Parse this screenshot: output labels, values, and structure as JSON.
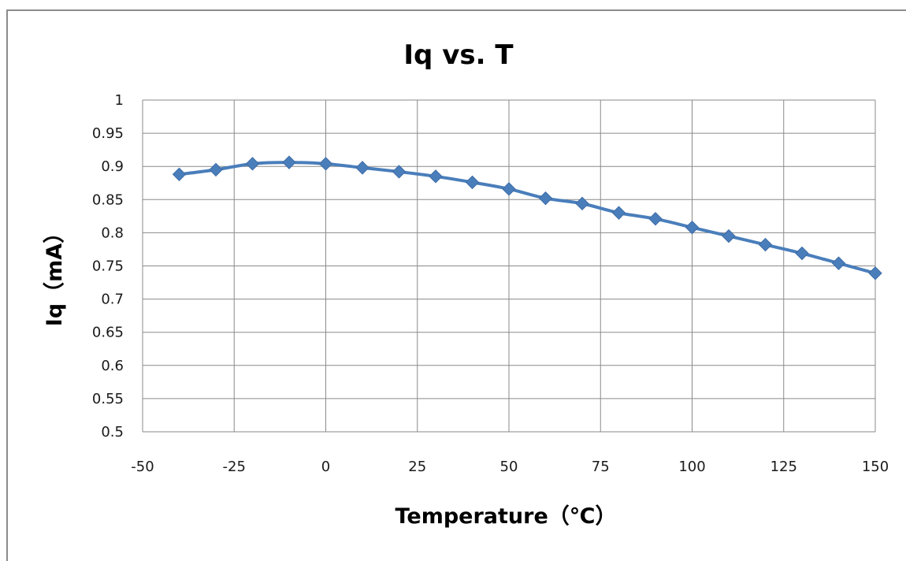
{
  "chart_data": {
    "type": "line",
    "title": "Iq vs. T",
    "xlabel": "Temperature（℃）",
    "ylabel": "Iq（mA）",
    "xlim": [
      -50,
      150
    ],
    "ylim": [
      0.5,
      1
    ],
    "x_ticks": [
      "-50",
      "-25",
      "0",
      "25",
      "50",
      "75",
      "100",
      "125",
      "150"
    ],
    "y_ticks": [
      "0.5",
      "0.55",
      "0.6",
      "0.65",
      "0.7",
      "0.75",
      "0.8",
      "0.85",
      "0.9",
      "0.95",
      "1"
    ],
    "grid": true,
    "marker": "diamond",
    "series": [
      {
        "color": "#4a7ebb",
        "x": [
          -40,
          -30,
          -20,
          -10,
          0,
          10,
          20,
          30,
          40,
          50,
          60,
          70,
          80,
          90,
          100,
          110,
          120,
          130,
          140,
          150
        ],
        "y": [
          0.888,
          0.895,
          0.904,
          0.906,
          0.904,
          0.898,
          0.892,
          0.885,
          0.876,
          0.866,
          0.852,
          0.844,
          0.83,
          0.821,
          0.808,
          0.795,
          0.782,
          0.769,
          0.754,
          0.739
        ]
      }
    ]
  }
}
